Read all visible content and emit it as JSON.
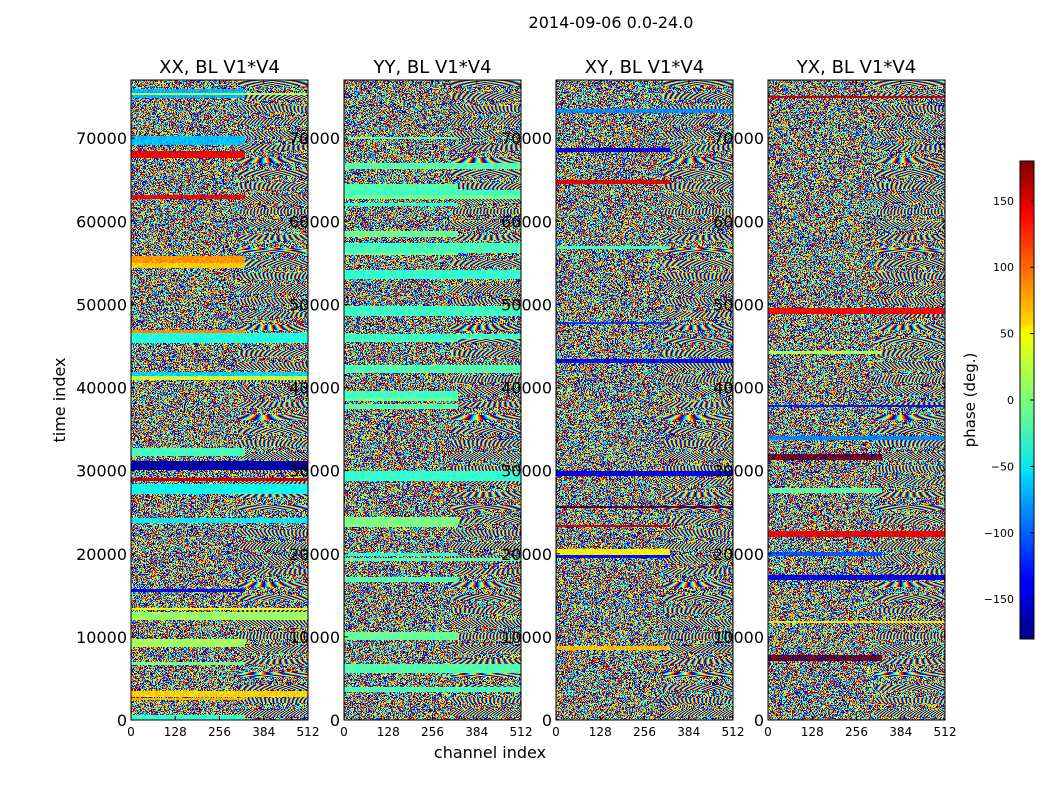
{
  "chart_data": {
    "type": "heatmap",
    "suptitle": "2014-09-06 0.0-24.0",
    "xlabel": "channel index",
    "ylabel": "time index",
    "xlim": [
      0,
      512
    ],
    "ylim": [
      0,
      77000
    ],
    "xticks": [
      0,
      128,
      256,
      384,
      512
    ],
    "yticks": [
      0,
      10000,
      20000,
      30000,
      40000,
      50000,
      60000,
      70000
    ],
    "panels": [
      {
        "title": "XX, BL V1*V4",
        "product": "XX"
      },
      {
        "title": "YY, BL V1*V4",
        "product": "YY"
      },
      {
        "title": "XY, BL V1*V4",
        "product": "XY"
      },
      {
        "title": "YX, BL V1*V4",
        "product": "YX"
      }
    ],
    "colorbar": {
      "label": "phase (deg.)",
      "colormap": "jet",
      "range": [
        -180,
        180
      ],
      "ticks": [
        150,
        100,
        50,
        0,
        -50,
        -100,
        -150
      ],
      "tick_labels": [
        "150",
        "100",
        "50",
        "0",
        "−50",
        "−100",
        "−150"
      ]
    },
    "value_description": "phase in degrees, visually noisy with horizontal banded structures"
  }
}
